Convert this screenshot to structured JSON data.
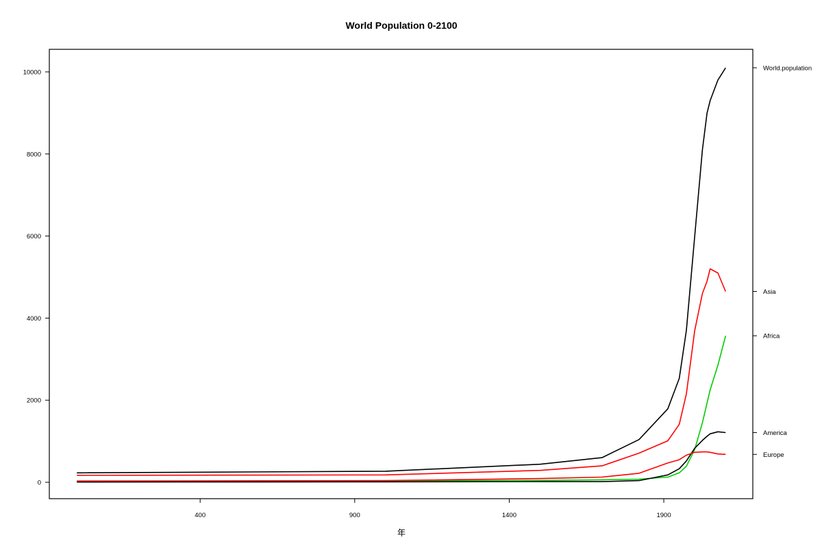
{
  "chart_data": {
    "type": "line",
    "title": "World Population 0-2100",
    "xlabel": "年",
    "ylabel": "",
    "xlim": [
      -88,
      2188
    ],
    "ylim": [
      -400,
      10550
    ],
    "xticks": [
      400,
      900,
      1400,
      1900
    ],
    "yticks": [
      0,
      2000,
      4000,
      6000,
      8000,
      10000
    ],
    "grid": false,
    "legend": "right-side labels",
    "series": [
      {
        "name": "World.population",
        "color": "#000000",
        "x": [
          1,
          1000,
          1500,
          1700,
          1820,
          1913,
          1950,
          1973,
          2000,
          2025,
          2040,
          2050,
          2075,
          2100
        ],
        "y": [
          230,
          270,
          440,
          600,
          1040,
          1790,
          2530,
          3700,
          6000,
          8100,
          9000,
          9300,
          9800,
          10100
        ]
      },
      {
        "name": "Asia",
        "color": "#ff0000",
        "x": [
          1,
          1000,
          1500,
          1700,
          1820,
          1913,
          1950,
          1973,
          2000,
          2025,
          2040,
          2050,
          2075,
          2100
        ],
        "y": [
          170,
          180,
          290,
          400,
          710,
          1010,
          1410,
          2150,
          3700,
          4600,
          4900,
          5200,
          5100,
          4650
        ]
      },
      {
        "name": "Africa",
        "color": "#00cc00",
        "x": [
          1,
          1000,
          1500,
          1700,
          1820,
          1913,
          1950,
          1973,
          2000,
          2025,
          2050,
          2075,
          2100
        ],
        "y": [
          15,
          30,
          45,
          60,
          75,
          125,
          230,
          390,
          800,
          1450,
          2250,
          2850,
          3570
        ]
      },
      {
        "name": "America",
        "color": "#000000",
        "x": [
          1,
          1000,
          1500,
          1700,
          1820,
          1913,
          1950,
          1973,
          2000,
          2025,
          2040,
          2050,
          2075,
          2100
        ],
        "y": [
          5,
          10,
          15,
          15,
          40,
          180,
          330,
          520,
          830,
          1020,
          1120,
          1180,
          1230,
          1210
        ]
      },
      {
        "name": "Europe",
        "color": "#ff0000",
        "x": [
          1,
          1000,
          1500,
          1700,
          1820,
          1913,
          1950,
          1973,
          2000,
          2025,
          2040,
          2050,
          2075,
          2100
        ],
        "y": [
          30,
          40,
          90,
          125,
          220,
          470,
          550,
          660,
          730,
          740,
          740,
          730,
          690,
          680
        ]
      }
    ]
  }
}
